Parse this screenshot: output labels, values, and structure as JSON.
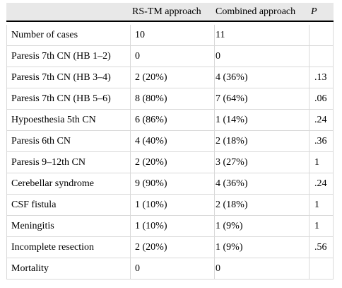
{
  "header": {
    "col1": "RS-TM approach",
    "col2": "Combined approach",
    "col3": "P"
  },
  "rows": [
    {
      "label": "Number of cases",
      "rs_tm": "10",
      "combined": "11",
      "p": ""
    },
    {
      "label": "Paresis 7th CN (HB 1–2)",
      "rs_tm": "0",
      "combined": "0",
      "p": ""
    },
    {
      "label": "Paresis 7th CN (HB 3–4)",
      "rs_tm": "2 (20%)",
      "combined": "4 (36%)",
      "p": ".13"
    },
    {
      "label": "Paresis 7th CN (HB 5–6)",
      "rs_tm": "8 (80%)",
      "combined": "7 (64%)",
      "p": ".06"
    },
    {
      "label": "Hypoesthesia 5th CN",
      "rs_tm": "6 (86%)",
      "combined": "1 (14%)",
      "p": ".24"
    },
    {
      "label": "Paresis 6th CN",
      "rs_tm": "4 (40%)",
      "combined": "2 (18%)",
      "p": ".36"
    },
    {
      "label": "Paresis 9–12th CN",
      "rs_tm": "2 (20%)",
      "combined": "3 (27%)",
      "p": "1"
    },
    {
      "label": "Cerebellar syndrome",
      "rs_tm": "9 (90%)",
      "combined": "4 (36%)",
      "p": ".24"
    },
    {
      "label": "CSF fistula",
      "rs_tm": "1 (10%)",
      "combined": "2 (18%)",
      "p": "1"
    },
    {
      "label": "Meningitis",
      "rs_tm": "1 (10%)",
      "combined": "1 (9%)",
      "p": "1"
    },
    {
      "label": "Incomplete resection",
      "rs_tm": "2 (20%)",
      "combined": "1 (9%)",
      "p": ".56"
    },
    {
      "label": "Mortality",
      "rs_tm": "0",
      "combined": "0",
      "p": ""
    }
  ]
}
